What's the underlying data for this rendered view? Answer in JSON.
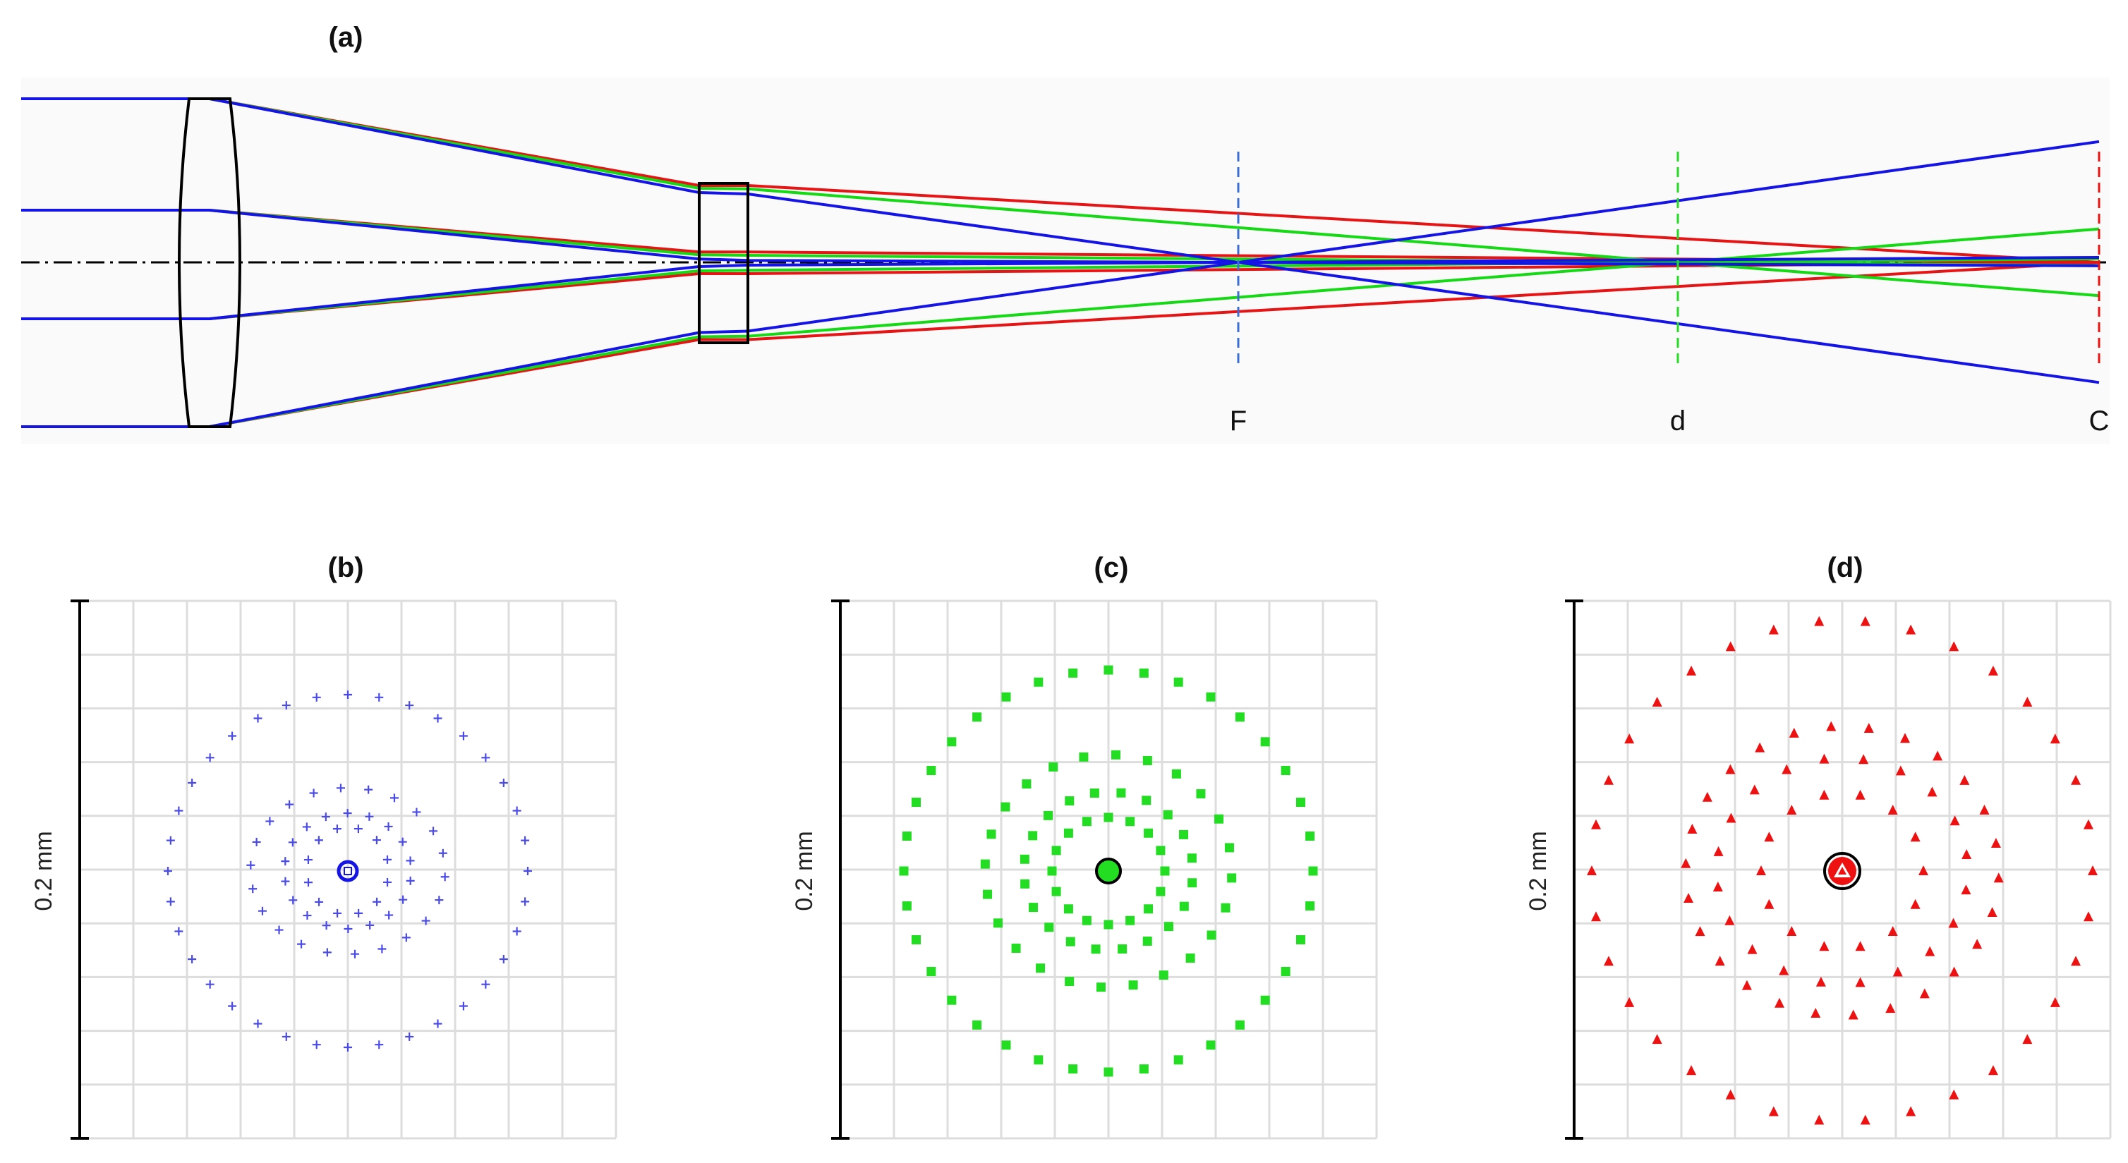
{
  "panels": {
    "a": {
      "title": "(a)",
      "plane_labels": [
        "F",
        "d",
        "C"
      ]
    },
    "b": {
      "title": "(b)",
      "scale_label": "0.2 mm",
      "marker": "plus",
      "color": "#4a4ae8"
    },
    "c": {
      "title": "(c)",
      "scale_label": "0.2 mm",
      "marker": "square",
      "color": "#22dd22"
    },
    "d": {
      "title": "(d)",
      "scale_label": "0.2 mm",
      "marker": "triangle",
      "color": "#ee1111"
    }
  },
  "colors": {
    "blue": "#1414e6",
    "green": "#16d916",
    "red": "#e61414",
    "grid": "#dddddd",
    "axis": "#000000",
    "plane_F": "#3a6fd8",
    "plane_d": "#22dd22",
    "plane_C": "#ee1111"
  },
  "wavelength_order": [
    "blue",
    "green",
    "red"
  ],
  "planes": [
    "F",
    "d",
    "C"
  ]
}
